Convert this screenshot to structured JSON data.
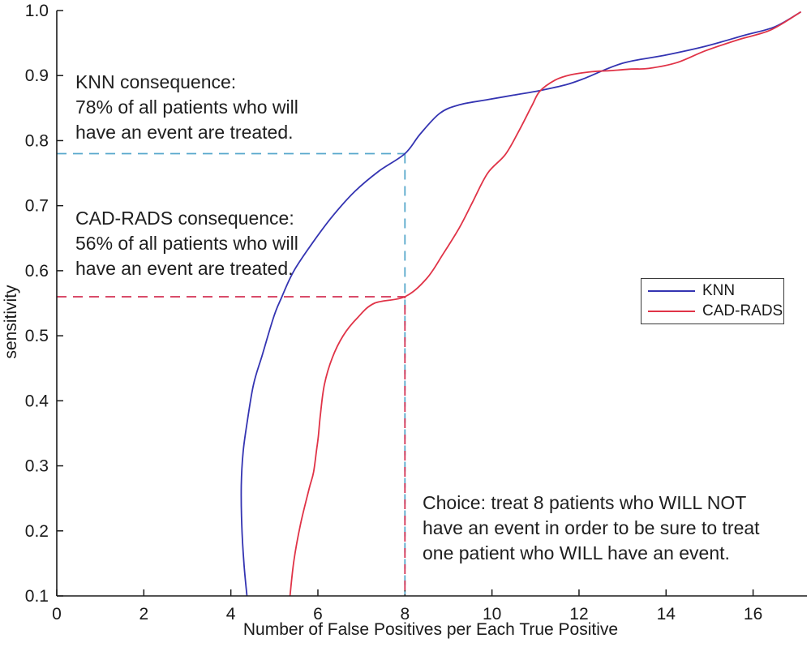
{
  "figure": {
    "background": "#ffffff",
    "axis_color": "#1a1a1a"
  },
  "chart_data": {
    "type": "line",
    "title": "",
    "xlabel": "Number of False Positives per Each True Positive",
    "ylabel": "sensitivity",
    "xlim": [
      0,
      17.2
    ],
    "ylim": [
      0.1,
      1.0
    ],
    "x_ticks": [
      0,
      2,
      4,
      6,
      8,
      10,
      12,
      14,
      16
    ],
    "x_tick_labels": [
      "0",
      "2",
      "4",
      "6",
      "8",
      "10",
      "12",
      "14",
      "16"
    ],
    "y_ticks": [
      0.1,
      0.2,
      0.3,
      0.4,
      0.5,
      0.6,
      0.7,
      0.8,
      0.9,
      1.0
    ],
    "y_tick_labels": [
      "0.1",
      "0.2",
      "0.3",
      "0.4",
      "0.5",
      "0.6",
      "0.7",
      "0.8",
      "0.9",
      "1.0"
    ],
    "grid": false,
    "legend_position": "right-middle",
    "series": [
      {
        "name": "KNN",
        "color": "#3434b2",
        "points": [
          [
            4.37,
            0.1
          ],
          [
            4.3,
            0.15
          ],
          [
            4.25,
            0.21
          ],
          [
            4.24,
            0.27
          ],
          [
            4.28,
            0.32
          ],
          [
            4.37,
            0.365
          ],
          [
            4.52,
            0.425
          ],
          [
            4.72,
            0.47
          ],
          [
            4.99,
            0.53
          ],
          [
            5.16,
            0.558
          ],
          [
            5.45,
            0.6
          ],
          [
            5.9,
            0.645
          ],
          [
            6.35,
            0.685
          ],
          [
            6.85,
            0.722
          ],
          [
            7.4,
            0.753
          ],
          [
            8.0,
            0.78
          ],
          [
            8.35,
            0.81
          ],
          [
            8.8,
            0.842
          ],
          [
            9.25,
            0.855
          ],
          [
            9.9,
            0.863
          ],
          [
            10.5,
            0.87
          ],
          [
            11.1,
            0.877
          ],
          [
            11.7,
            0.886
          ],
          [
            12.1,
            0.895
          ],
          [
            13.0,
            0.919
          ],
          [
            13.95,
            0.931
          ],
          [
            14.9,
            0.945
          ],
          [
            15.8,
            0.962
          ],
          [
            16.5,
            0.975
          ],
          [
            17.1,
            0.998
          ]
        ]
      },
      {
        "name": "CAD-RADS",
        "color": "#e03347",
        "points": [
          [
            5.36,
            0.1
          ],
          [
            5.45,
            0.155
          ],
          [
            5.6,
            0.21
          ],
          [
            5.8,
            0.265
          ],
          [
            5.9,
            0.29
          ],
          [
            5.97,
            0.325
          ],
          [
            6.01,
            0.345
          ],
          [
            6.06,
            0.38
          ],
          [
            6.15,
            0.425
          ],
          [
            6.33,
            0.466
          ],
          [
            6.58,
            0.5
          ],
          [
            6.9,
            0.527
          ],
          [
            7.3,
            0.55
          ],
          [
            8.0,
            0.56
          ],
          [
            8.5,
            0.588
          ],
          [
            8.87,
            0.625
          ],
          [
            9.25,
            0.666
          ],
          [
            9.55,
            0.705
          ],
          [
            9.9,
            0.75
          ],
          [
            10.3,
            0.778
          ],
          [
            10.6,
            0.8125
          ],
          [
            10.92,
            0.854
          ],
          [
            11.1,
            0.876
          ],
          [
            11.45,
            0.893
          ],
          [
            11.8,
            0.901
          ],
          [
            12.3,
            0.906
          ],
          [
            12.7,
            0.9075
          ],
          [
            13.2,
            0.91
          ],
          [
            13.6,
            0.911
          ],
          [
            14.25,
            0.92
          ],
          [
            14.9,
            0.938
          ],
          [
            15.65,
            0.955
          ],
          [
            16.4,
            0.97
          ],
          [
            17.1,
            0.998
          ]
        ]
      }
    ],
    "reference_lines": [
      {
        "name": "knn-threshold",
        "color": "#58a8cc",
        "y": 0.78,
        "x": 8,
        "dash_offset": 0
      },
      {
        "name": "cadrads-threshold",
        "color": "#d43355",
        "y": 0.56,
        "x": 8,
        "dash_offset": 10
      }
    ]
  },
  "legend": {
    "entries": [
      {
        "label": "KNN",
        "color": "#3434b2"
      },
      {
        "label": "CAD-RADS",
        "color": "#e03347"
      }
    ]
  },
  "annotations": {
    "knn": {
      "lines": [
        "KNN consequence:",
        "78% of all patients who will",
        "have an event are treated."
      ]
    },
    "cadrads": {
      "lines": [
        "CAD-RADS consequence:",
        "56% of all patients who will",
        "have an event are treated."
      ]
    },
    "choice": {
      "lines": [
        "Choice: treat 8 patients who WILL NOT",
        "have an event in order to be sure to treat",
        "one patient who WILL have an event."
      ]
    }
  }
}
